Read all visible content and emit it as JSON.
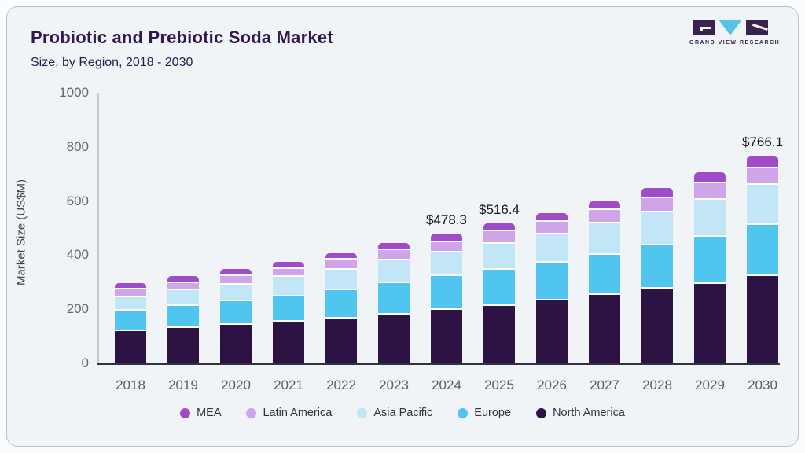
{
  "header": {
    "title": "Probiotic and Prebiotic Soda Market",
    "subtitle": "Size, by Region, 2018 - 2030"
  },
  "logo": {
    "caption": "GRAND VIEW RESEARCH"
  },
  "chart_data": {
    "type": "stacked_bar",
    "title": "Probiotic and Prebiotic Soda Market",
    "subtitle": "Size, by Region, 2018 - 2030",
    "ylabel": "Market Size (US$M)",
    "ylim": [
      0,
      1000
    ],
    "yticks": [
      0,
      200,
      400,
      600,
      800,
      1000
    ],
    "grid": false,
    "legend_position": "bottom",
    "categories": [
      "2018",
      "2019",
      "2020",
      "2021",
      "2022",
      "2023",
      "2024",
      "2025",
      "2026",
      "2027",
      "2028",
      "2029",
      "2030"
    ],
    "series": [
      {
        "name": "North America",
        "color": "#2d1244",
        "values": [
          130,
          141,
          152,
          165,
          177,
          191,
          206,
          223,
          242,
          262,
          285,
          304,
          331
        ]
      },
      {
        "name": "Europe",
        "color": "#50c5f0",
        "values": [
          74,
          82,
          89,
          93,
          104,
          114,
          125,
          133,
          140,
          150,
          160,
          175,
          190
        ]
      },
      {
        "name": "Asia Pacific",
        "color": "#c3e6f7",
        "values": [
          50,
          55,
          59,
          70,
          76,
          85,
          87,
          94,
          104,
          115,
          123,
          135,
          145
        ]
      },
      {
        "name": "Latin America",
        "color": "#cfa4e9",
        "values": [
          23,
          24,
          26,
          27,
          31,
          32,
          34,
          41,
          43,
          46,
          48,
          55,
          57
        ]
      },
      {
        "name": "MEA",
        "color": "#a04bc8",
        "values": [
          20,
          21,
          23,
          21,
          20,
          22,
          26.3,
          25.4,
          27,
          26,
          32,
          37,
          43.1
        ]
      }
    ],
    "totals": [
      297,
      323,
      349,
      376,
      408,
      444,
      478.3,
      516.4,
      556,
      599,
      648,
      706,
      766.1
    ],
    "data_labels": [
      {
        "category": "2024",
        "text": "$478.3"
      },
      {
        "category": "2025",
        "text": "$516.4"
      },
      {
        "category": "2030",
        "text": "$766.1"
      }
    ],
    "legend_order": [
      "MEA",
      "Latin America",
      "Asia Pacific",
      "Europe",
      "North America"
    ]
  }
}
